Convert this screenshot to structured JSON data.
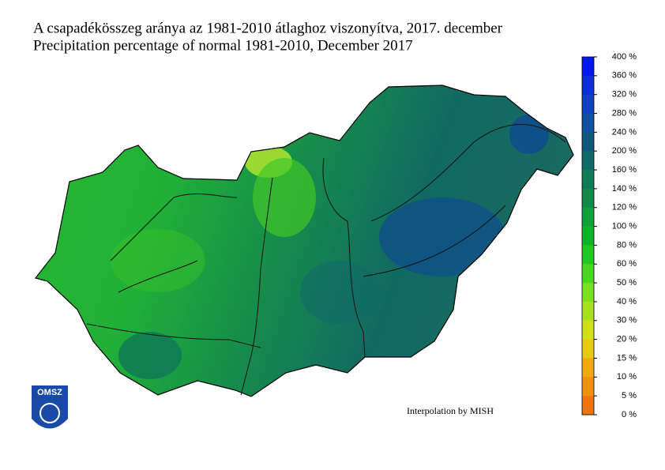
{
  "header": {
    "title_hu": "A csapadékösszeg aránya az 1981-2010 átlaghoz viszonyítva, 2017. december",
    "title_en": "Precipitation percentage of normal 1981-2010, December 2017"
  },
  "credit": "Interpolation by MISH",
  "logo": "OMSZ",
  "legend": {
    "labels": [
      "400 %",
      "360 %",
      "320 %",
      "280 %",
      "240 %",
      "200 %",
      "160 %",
      "140 %",
      "120 %",
      "100 %",
      "80 %",
      "60 %",
      "50 %",
      "40 %",
      "30 %",
      "20 %",
      "15 %",
      "10 %",
      "5 %",
      "0 %"
    ],
    "colors": [
      "#0018f0",
      "#0a2ed8",
      "#1040c0",
      "#1050a0",
      "#105880",
      "#106a68",
      "#107a58",
      "#108a48",
      "#10a038",
      "#10b428",
      "#20c820",
      "#48d820",
      "#78e020",
      "#a8e020",
      "#d0e018",
      "#e8c810",
      "#f0a810",
      "#f09010",
      "#f07410"
    ]
  }
}
